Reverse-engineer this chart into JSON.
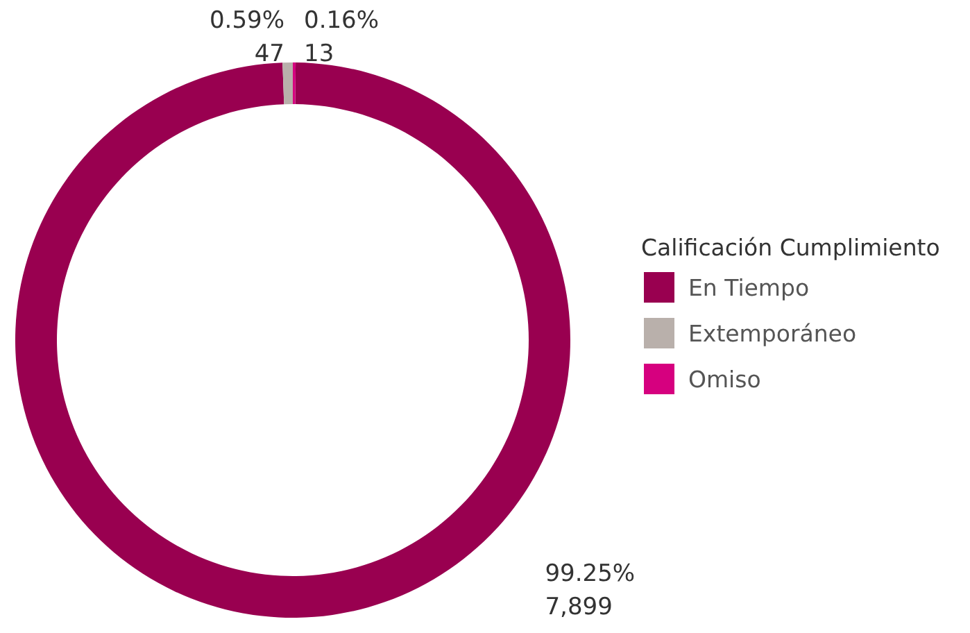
{
  "chart_data": {
    "type": "donut",
    "legend_title": "Calificación Cumplimiento",
    "legend": "right",
    "categories": [
      "En Tiempo",
      "Extemporáneo",
      "Omiso"
    ],
    "values": [
      7899,
      47,
      13
    ],
    "colors": [
      "#990050",
      "#b9b0ab",
      "#d6007f"
    ],
    "value_labels": [
      "99.25%\n7,899",
      "0.59%\n47",
      "0.16%\n13"
    ]
  }
}
